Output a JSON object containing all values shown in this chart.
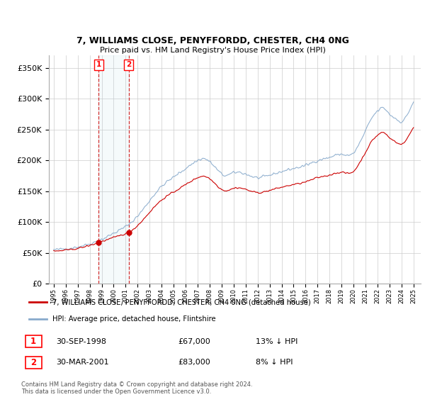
{
  "title": "7, WILLIAMS CLOSE, PENYFFORDD, CHESTER, CH4 0NG",
  "subtitle": "Price paid vs. HM Land Registry's House Price Index (HPI)",
  "legend_line1": "7, WILLIAMS CLOSE, PENYFFORDD, CHESTER, CH4 0NG (detached house)",
  "legend_line2": "HPI: Average price, detached house, Flintshire",
  "transaction1_date": "30-SEP-1998",
  "transaction1_price": "£67,000",
  "transaction1_hpi": "13% ↓ HPI",
  "transaction2_date": "30-MAR-2001",
  "transaction2_price": "£83,000",
  "transaction2_hpi": "8% ↓ HPI",
  "footnote": "Contains HM Land Registry data © Crown copyright and database right 2024.\nThis data is licensed under the Open Government Licence v3.0.",
  "red_line_color": "#cc0000",
  "blue_line_color": "#88aacc",
  "grid_color": "#cccccc",
  "ylim_min": 0,
  "ylim_max": 370000,
  "sale1_year": 1998.75,
  "sale1_price": 67000,
  "sale2_year": 2001.25,
  "sale2_price": 83000
}
